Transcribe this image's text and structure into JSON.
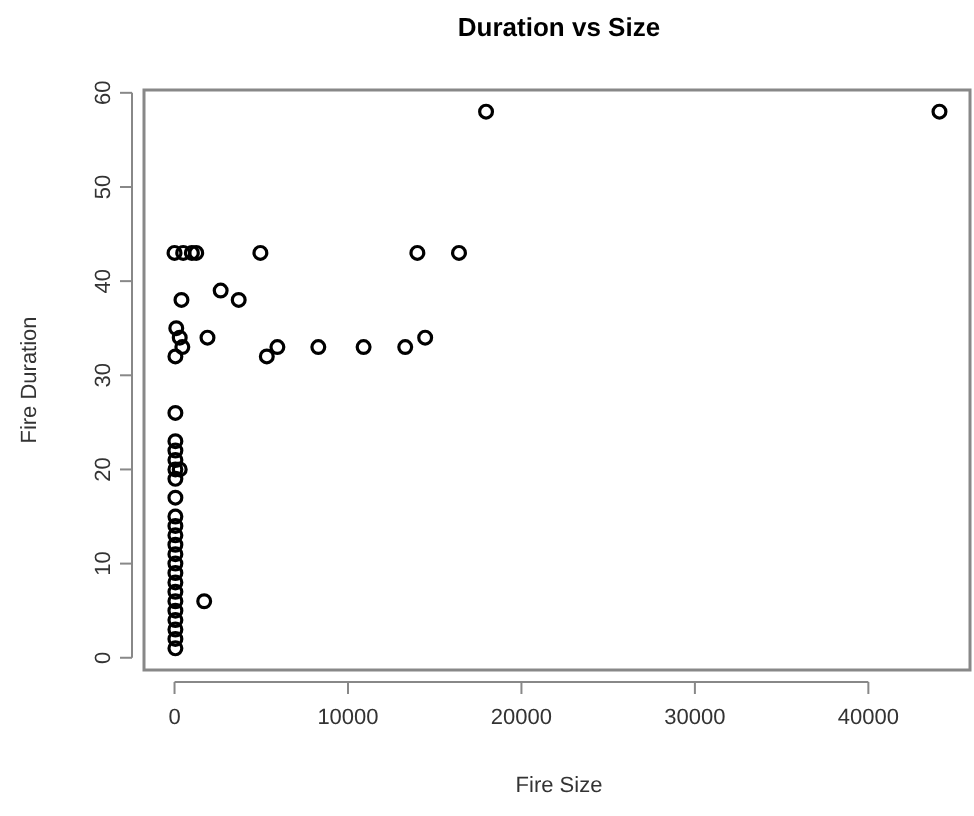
{
  "chart_data": {
    "type": "scatter",
    "title": "Duration vs Size",
    "xlabel": "Fire Size",
    "ylabel": "Fire Duration",
    "marker": "circle",
    "color": "#000000",
    "grid": false,
    "xlim": [
      -1760,
      45860
    ],
    "xticks": [
      0,
      10000,
      20000,
      30000,
      40000
    ],
    "ylim": [
      -1.3,
      60.3
    ],
    "yticks": [
      0,
      10,
      20,
      30,
      40,
      50,
      60
    ],
    "x": [
      0,
      500,
      1000,
      1250,
      4950,
      14000,
      16400,
      400,
      3700,
      2660,
      100,
      300,
      1900,
      14450,
      450,
      5930,
      8290,
      10900,
      13300,
      50,
      5320,
      50,
      50,
      50,
      50,
      50,
      300,
      50,
      50,
      50,
      50,
      50,
      50,
      50,
      50,
      50,
      50,
      50,
      50,
      50,
      50,
      50,
      50,
      50,
      1710,
      17960,
      44100
    ],
    "values": [
      43,
      43,
      43,
      43,
      43,
      43,
      43,
      38,
      38,
      39,
      35,
      34,
      34,
      34,
      33,
      33,
      33,
      33,
      33,
      32,
      32,
      26,
      23,
      22,
      21,
      20,
      20,
      19,
      17,
      15,
      14,
      13,
      12,
      10,
      9,
      8,
      7,
      6,
      5,
      4,
      3,
      2,
      1,
      11,
      6,
      58,
      58
    ]
  }
}
